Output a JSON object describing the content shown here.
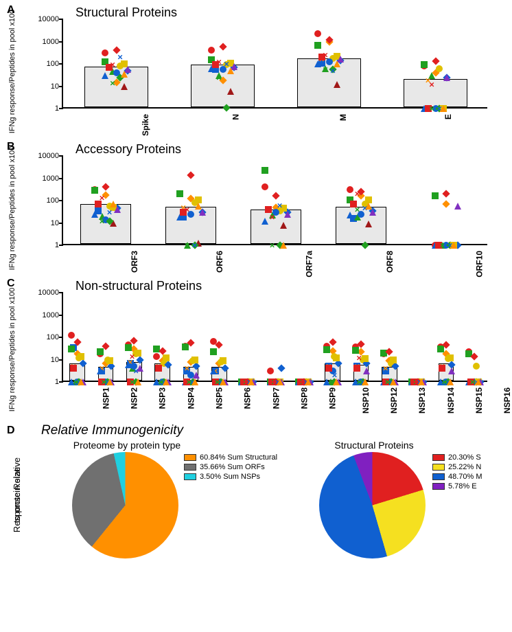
{
  "labels": {
    "panelA": "A",
    "panelB": "B",
    "panelC": "C",
    "panelD": "D",
    "titleA": "Structural Proteins",
    "titleB": "Accessory Proteins",
    "titleC": "Non-structural Proteins",
    "titleD": "Relative Immunogenicity",
    "subD1": "Proteome by protein type",
    "subD2": "Structural Proteins",
    "ylabel": "IFNg response/Peptides in pool x100",
    "dYlabel1": "Response Relative",
    "dYlabel2": "to protein size"
  },
  "yAxis": {
    "ticks": [
      1,
      10,
      100,
      1000,
      10000
    ],
    "tickLabels": [
      "1",
      "10",
      "100",
      "1000",
      "10000"
    ]
  },
  "donors": [
    {
      "color": "#e02020",
      "shape": "ci"
    },
    {
      "color": "#1060d0",
      "shape": "sq"
    },
    {
      "color": "#20a020",
      "shape": "tr"
    },
    {
      "color": "#ff9000",
      "shape": "di"
    },
    {
      "color": "#e0c000",
      "shape": "ci"
    },
    {
      "color": "#a01818",
      "shape": "tr"
    },
    {
      "color": "#1060d0",
      "shape": "di"
    },
    {
      "color": "#20a020",
      "shape": "sq"
    },
    {
      "color": "#ff9000",
      "shape": "xm"
    },
    {
      "color": "#e02020",
      "shape": "xm"
    },
    {
      "color": "#1060d0",
      "shape": "ci"
    },
    {
      "color": "#20a020",
      "shape": "di"
    },
    {
      "color": "#e0c000",
      "shape": "sq"
    },
    {
      "color": "#8030c0",
      "shape": "tr"
    },
    {
      "color": "#1060d0",
      "shape": "tr"
    },
    {
      "color": "#e02020",
      "shape": "sq"
    },
    {
      "color": "#20a020",
      "shape": "xm"
    },
    {
      "color": "#e02020",
      "shape": "di"
    },
    {
      "color": "#1060d0",
      "shape": "xm"
    },
    {
      "color": "#ff9000",
      "shape": "tr"
    }
  ],
  "panelA": {
    "categories": [
      "Spike",
      "N",
      "M",
      "E"
    ],
    "bars": [
      65,
      80,
      150,
      18
    ],
    "points": [
      [
        300,
        70,
        45,
        15,
        80,
        10,
        50,
        120,
        60,
        90,
        40,
        25,
        100,
        55,
        30,
        70,
        14,
        400,
        200,
        35
      ],
      [
        400,
        55,
        30,
        18,
        90,
        5.8,
        70,
        150,
        80,
        120,
        55,
        1.1,
        110,
        75,
        60,
        90,
        25,
        600,
        100,
        50
      ],
      [
        2200,
        110,
        60,
        1000,
        180,
        12,
        140,
        700,
        160,
        250,
        120,
        55,
        220,
        160,
        100,
        200,
        55,
        1200,
        50,
        100
      ],
      [
        80,
        1,
        30,
        40,
        60,
        1,
        25,
        90,
        18,
        12,
        1,
        1,
        1,
        25,
        1,
        1,
        1,
        130,
        1,
        1
      ]
    ]
  },
  "panelB": {
    "categories": [
      "ORF3",
      "ORF6",
      "ORF7a",
      "ORF8",
      "ORF10"
    ],
    "bars": [
      60,
      45,
      35,
      45,
      1
    ],
    "points": [
      [
        300,
        35,
        20,
        180,
        55,
        10,
        45,
        280,
        60,
        130,
        14,
        12,
        50,
        40,
        25,
        70,
        12,
        400,
        30,
        70
      ],
      [
        200,
        18,
        1,
        120,
        80,
        1.2,
        30,
        200,
        50,
        40,
        25,
        1,
        110,
        30,
        18,
        30,
        1,
        1400,
        1,
        55
      ],
      [
        400,
        40,
        22,
        50,
        35,
        8,
        30,
        2200,
        40,
        18,
        30,
        1,
        45,
        25,
        12,
        40,
        1,
        160,
        60,
        1
      ],
      [
        300,
        16,
        18,
        160,
        70,
        9,
        35,
        110,
        60,
        200,
        25,
        1,
        110,
        30,
        22,
        70,
        40,
        250,
        45,
        55
      ],
      [
        1,
        1,
        1,
        70,
        1,
        1,
        1,
        170,
        1,
        1,
        1,
        1,
        1,
        55,
        1,
        1,
        1,
        200,
        1,
        1
      ]
    ]
  },
  "panelC": {
    "categories": [
      "NSP1",
      "NSP2",
      "NSP3",
      "NSP4",
      "NSP5",
      "NSP6",
      "NSP7",
      "NSP8",
      "NSP9",
      "NSP10",
      "NSP12",
      "NSP13",
      "NSP14",
      "NSP15",
      "NSP16"
    ],
    "bars": [
      6,
      4,
      7,
      6,
      4,
      4,
      1,
      1,
      1,
      6,
      5,
      4,
      1,
      6,
      1
    ],
    "points": [
      [
        120,
        35,
        1,
        18,
        12,
        1,
        7,
        30,
        5,
        1,
        1,
        1,
        14,
        1,
        1,
        4,
        1,
        60,
        1,
        1
      ],
      [
        18,
        3,
        1,
        7,
        10,
        1,
        5,
        22,
        4,
        1,
        1,
        1,
        9,
        1,
        3,
        1,
        1,
        40,
        1,
        1
      ],
      [
        45,
        7,
        4,
        30,
        18,
        1,
        10,
        35,
        8,
        14,
        5,
        1,
        20,
        4,
        6,
        1,
        1,
        70,
        3,
        1
      ],
      [
        14,
        4,
        1,
        9,
        7,
        1,
        6,
        30,
        5,
        1,
        1,
        1,
        12,
        1,
        1,
        4,
        1,
        25,
        1,
        1
      ],
      [
        40,
        3,
        1,
        8,
        9,
        1,
        5,
        38,
        4,
        1,
        2,
        1,
        10,
        2,
        1,
        1,
        1,
        55,
        1,
        1
      ],
      [
        65,
        3,
        1,
        7,
        8,
        1,
        4,
        22,
        3,
        1,
        1,
        1,
        9,
        1,
        3,
        1,
        1,
        45,
        1,
        1
      ],
      [
        1,
        1,
        1,
        1,
        1,
        1,
        1,
        1,
        1,
        1,
        1,
        1,
        1,
        1,
        1,
        1,
        1,
        1,
        1,
        1
      ],
      [
        3,
        1,
        1,
        1,
        1,
        1,
        4,
        1,
        1,
        1,
        1,
        1,
        1,
        1,
        1,
        1,
        1,
        1,
        1,
        1
      ],
      [
        1,
        1,
        1,
        1,
        1,
        1,
        1,
        1,
        1,
        1,
        1,
        1,
        1,
        1,
        1,
        1,
        1,
        1,
        1,
        1
      ],
      [
        40,
        5,
        1,
        25,
        14,
        1,
        7,
        28,
        5,
        1,
        3,
        1,
        12,
        1,
        1,
        4,
        1,
        60,
        2,
        1
      ],
      [
        38,
        5,
        1,
        22,
        10,
        1,
        7,
        26,
        5,
        12,
        1,
        1,
        11,
        3,
        1,
        4,
        1,
        50,
        1,
        1
      ],
      [
        18,
        3,
        1,
        9,
        7,
        1,
        5,
        20,
        4,
        1,
        1,
        1,
        10,
        1,
        1,
        1,
        1,
        22,
        1,
        1
      ],
      [
        1,
        1,
        1,
        1,
        1,
        1,
        1,
        1,
        1,
        1,
        1,
        1,
        1,
        1,
        1,
        1,
        1,
        1,
        1,
        1
      ],
      [
        38,
        4,
        1,
        18,
        11,
        1,
        6,
        30,
        5,
        1,
        1,
        1,
        12,
        3,
        1,
        4,
        1,
        45,
        1,
        1
      ],
      [
        22,
        1,
        1,
        1,
        5,
        1,
        1,
        18,
        1,
        1,
        1,
        1,
        1,
        1,
        1,
        1,
        1,
        14,
        1,
        1
      ]
    ]
  },
  "panelD": {
    "pie1": {
      "slices": [
        60.84,
        35.66,
        3.5
      ],
      "colors": [
        "#ff9000",
        "#707070",
        "#20d0e0"
      ],
      "legend": [
        "60.84%  Sum Structural",
        "35.66%  Sum ORFs",
        "3.50%  Sum NSPs"
      ]
    },
    "pie2": {
      "slices": [
        20.3,
        25.22,
        48.7,
        5.78
      ],
      "colors": [
        "#e02020",
        "#f5e020",
        "#1060d0",
        "#8020c0"
      ],
      "legend": [
        "20.30%  S",
        "25.22%  N",
        "48.70%  M",
        "5.78%  E"
      ]
    }
  },
  "style": {
    "background": "#ffffff",
    "barFill": "#e8e8e8",
    "gridNone": true,
    "yScale": "log"
  }
}
